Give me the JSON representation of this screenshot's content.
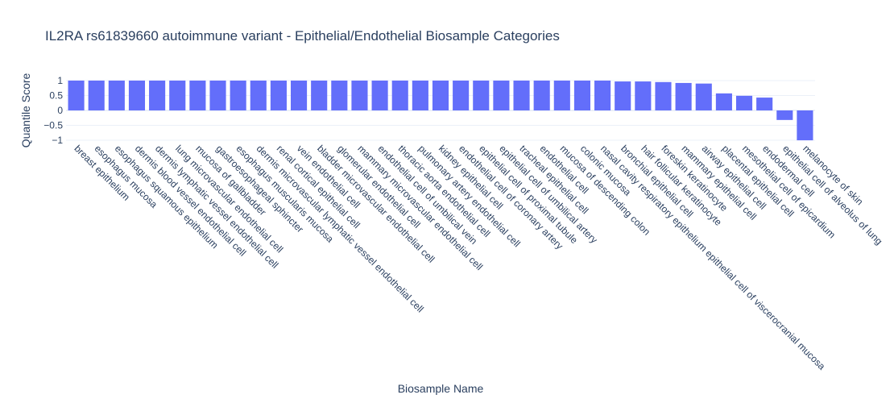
{
  "chart_data": {
    "type": "bar",
    "title": "IL2RA rs61839660 autoimmune variant - Epithelial/Endothelial Biosample Categories",
    "x_label": "Biosample Name",
    "y_label": "Quantile Score",
    "categories": [
      "breast epithelium",
      "esophagus mucosa",
      "esophagus squamous epithelium",
      "dermis blood vessel endothelial cell",
      "dermis lymphatic vessel endothelial cell",
      "lung microvascular endothelial cell",
      "mucosa of gallbladder",
      "gastroesophageal sphincter",
      "esophagus muscularis mucosa",
      "dermis microvascular lymphatic vessel endothelial cell",
      "renal cortical epithelial cell",
      "vein endothelial cell",
      "bladder microvascular endothelial cell",
      "glomerular endothelial cell",
      "mammary microvascular endothelial cell",
      "endothelial cell of umbilical vein",
      "thoracic aorta endothelial cell",
      "pulmonary artery endothelial cell",
      "kidney epithelial cell",
      "endothelial cell of coronary artery",
      "epithelial cell of proximal tubule",
      "epithelial cell of umbilical artery",
      "tracheal epithelial cell",
      "endothelial cell",
      "mucosa of descending colon",
      "colonic mucosa",
      "nasal cavity respiratory epithelium epithelial cell of viscerocranial mucosa",
      "bronchial epithelial cell",
      "hair follicular keratinocyte",
      "foreskin keratinocyte",
      "mammary epithelial cell",
      "airway epithelial cell",
      "placental epithelial cell",
      "mesothelial cell of epicardium",
      "endodermal cell",
      "epithelial cell of alveolus of lung",
      "melanocyte of skin"
    ],
    "values": [
      1,
      1,
      1,
      1,
      1,
      1,
      1,
      1,
      1,
      1,
      1,
      1,
      1,
      1,
      1,
      1,
      1,
      1,
      1,
      1,
      1,
      1,
      1,
      1,
      1,
      1,
      1,
      0.97,
      0.97,
      0.95,
      0.92,
      0.9,
      0.57,
      0.49,
      0.43,
      -0.32,
      -1
    ],
    "color": "#636efa",
    "ylim": [
      -1.08,
      1.08
    ],
    "yticks": [
      {
        "value": -1,
        "label": "−1"
      },
      {
        "value": -0.5,
        "label": "−0.5"
      },
      0,
      0.5,
      1
    ],
    "grid": true
  }
}
